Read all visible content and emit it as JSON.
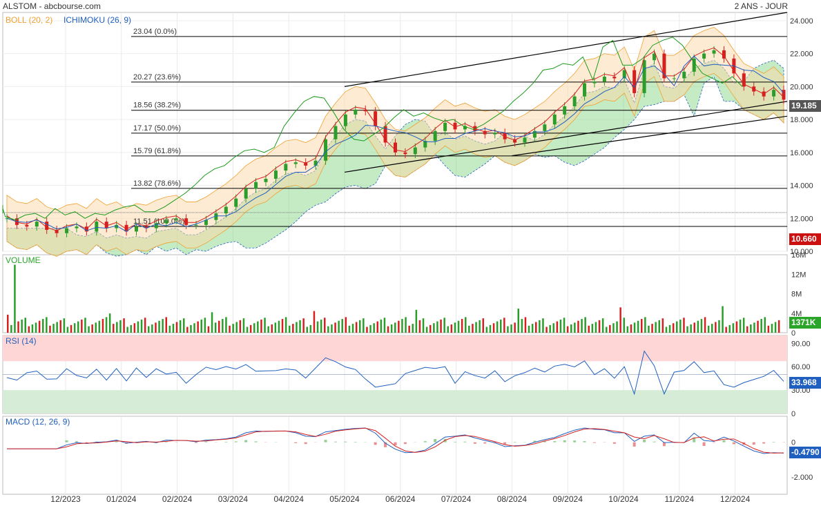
{
  "header": {
    "title": "ALSTOM - abcbourse.com",
    "period": "2 ANS - JOUR"
  },
  "colors": {
    "boll": "#f0a030",
    "ichimoku": "#1f5fbf",
    "volume": "#2aa52a",
    "rsi": "#1f5fbf",
    "macd": "#1f5fbf",
    "signal": "#d62020",
    "up": "#2a9d2a",
    "down": "#d62020",
    "last_price": "#555555",
    "min_price": "#cc1111",
    "volume_badge": "#2aa52a",
    "rsi_badge": "#1f5fbf",
    "macd_badge": "#1f5fbf"
  },
  "chart_data": [
    {
      "type": "candlestick",
      "panel": "price",
      "indicators": [
        "BOLL (20, 2)",
        "ICHIMOKU (26, 9)"
      ],
      "x_labels": [
        "12/2023",
        "01/2024",
        "02/2024",
        "03/2024",
        "04/2024",
        "05/2024",
        "06/2024",
        "07/2024",
        "08/2024",
        "09/2024",
        "10/2024",
        "11/2024",
        "12/2024"
      ],
      "y_ticks": [
        "24.000",
        "22.000",
        "20.000",
        "18.000",
        "16.000",
        "14.000",
        "12.000",
        "10.000"
      ],
      "ylim": [
        10,
        24.5
      ],
      "fibonacci": [
        {
          "label": "23.04  (0.0%)",
          "value": 23.04
        },
        {
          "label": "20.27  (23.6%)",
          "value": 20.27
        },
        {
          "label": "18.56  (38.2%)",
          "value": 18.56
        },
        {
          "label": "17.17  (50.0%)",
          "value": 17.17
        },
        {
          "label": "15.79  (61.8%)",
          "value": 15.79
        },
        {
          "label": "13.82  (78.6%)",
          "value": 13.82
        },
        {
          "label": "11.51  (100.0%)",
          "value": 11.51
        }
      ],
      "dotted_level": 12.35,
      "last_price": "19.185",
      "min_price": "10.660",
      "close_series": [
        12.0,
        11.6,
        11.5,
        11.8,
        11.3,
        11.1,
        11.4,
        11.5,
        11.2,
        11.8,
        11.4,
        11.6,
        11.2,
        11.5,
        11.4,
        11.7,
        11.9,
        12.0,
        11.6,
        11.6,
        11.9,
        12.3,
        12.7,
        13.2,
        13.8,
        14.2,
        14.4,
        14.9,
        15.3,
        15.4,
        15.2,
        15.5,
        16.8,
        17.6,
        18.3,
        18.6,
        18.5,
        17.6,
        16.6,
        16.0,
        15.9,
        16.3,
        16.7,
        17.3,
        17.8,
        17.4,
        17.6,
        17.3,
        17.1,
        17.2,
        16.8,
        16.6,
        16.9,
        17.3,
        17.7,
        18.3,
        18.8,
        19.4,
        20.2,
        20.3,
        20.6,
        20.5,
        21.0,
        19.6,
        21.6,
        22.0,
        20.5,
        20.5,
        20.9,
        21.7,
        22.0,
        22.2,
        21.7,
        20.8,
        20.0,
        19.7,
        19.4,
        19.8,
        19.2
      ],
      "trendlines": [
        {
          "from": [
            "05/2024",
            20.0
          ],
          "to": [
            "end",
            24.5
          ]
        },
        {
          "from": [
            "05/2024",
            14.8
          ],
          "to": [
            "end",
            19.1
          ]
        },
        {
          "from": [
            "08/2024",
            15.8
          ],
          "to": [
            "end",
            18.2
          ]
        }
      ]
    },
    {
      "type": "bar",
      "panel": "volume",
      "title": "VOLUME",
      "y_ticks": [
        "16M",
        "12M",
        "8M",
        "4M",
        "0"
      ],
      "ylim": [
        0,
        16
      ],
      "last_value": "1371K"
    },
    {
      "type": "line",
      "panel": "rsi",
      "title": "RSI (14)",
      "y_ticks": [
        "90.00",
        "60.00",
        "30.00",
        "0"
      ],
      "ylim": [
        0,
        100
      ],
      "zones": {
        "overbought": [
          67,
          100
        ],
        "oversold": [
          0,
          30
        ]
      },
      "last_value": "33.968"
    },
    {
      "type": "line",
      "panel": "macd",
      "title": "MACD (12, 26, 9)",
      "y_ticks": [
        "0",
        "-2.000"
      ],
      "ylim": [
        -3,
        1.5
      ],
      "last_value": "-0.4790"
    }
  ]
}
